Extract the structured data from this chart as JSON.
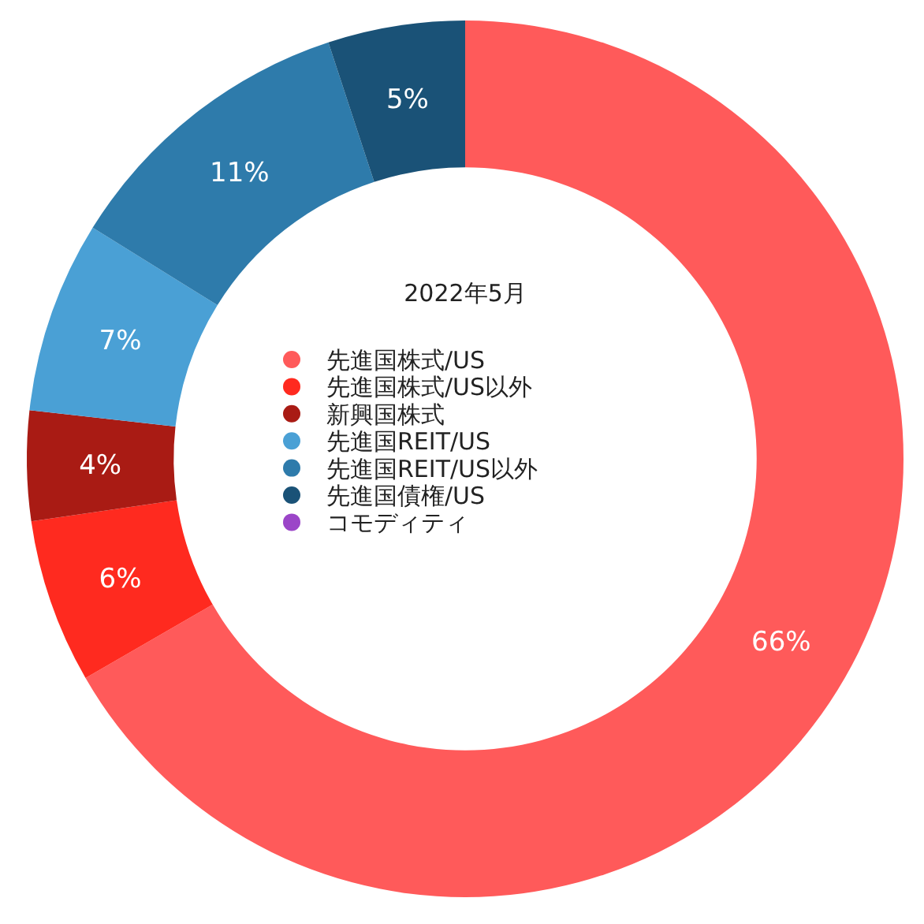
{
  "chart_data": {
    "type": "donut",
    "legend_title": "2022年5月",
    "categories": [
      "先進国株式/US",
      "先進国株式/US以外",
      "新興国株式",
      "先進国REIT/US",
      "先進国REIT/US以外",
      "先進国債権/US",
      "コモディティ"
    ],
    "values": [
      66,
      6,
      4,
      7,
      11,
      5,
      0
    ],
    "value_labels": [
      "66%",
      "6%",
      "4%",
      "7%",
      "11%",
      "5%",
      null
    ],
    "colors": [
      "#ff5a5a",
      "#ff2a1f",
      "#a91b14",
      "#4aa0d5",
      "#2e7bab",
      "#1a5277",
      "#9b45c8"
    ],
    "legend": "center"
  }
}
